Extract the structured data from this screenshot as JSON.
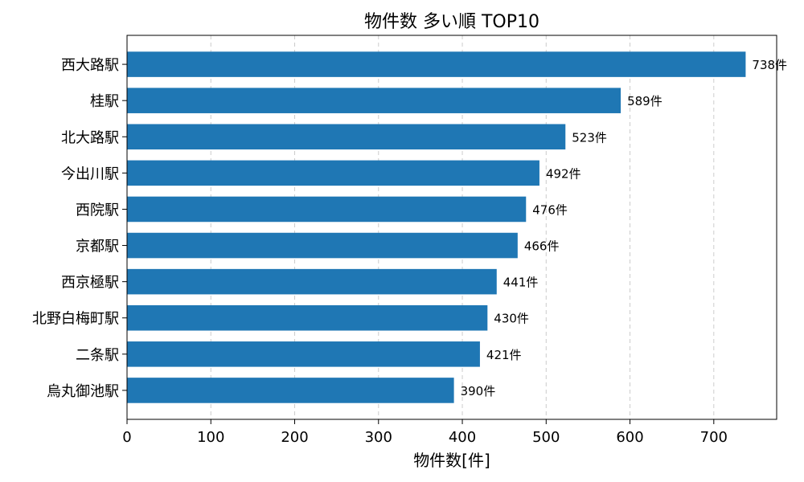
{
  "chart_data": {
    "type": "bar",
    "orientation": "horizontal",
    "title": "物件数 多い順 TOP10",
    "xlabel": "物件数[件]",
    "ylabel": "",
    "xlim": [
      0,
      775
    ],
    "xticks": [
      0,
      100,
      200,
      300,
      400,
      500,
      600,
      700
    ],
    "grid": "x-dashed",
    "bar_color": "#1f77b4",
    "value_suffix": "件",
    "categories": [
      "西大路駅",
      "桂駅",
      "北大路駅",
      "今出川駅",
      "西院駅",
      "京都駅",
      "西京極駅",
      "北野白梅町駅",
      "二条駅",
      "烏丸御池駅"
    ],
    "values": [
      738,
      589,
      523,
      492,
      476,
      466,
      441,
      430,
      421,
      390
    ]
  }
}
